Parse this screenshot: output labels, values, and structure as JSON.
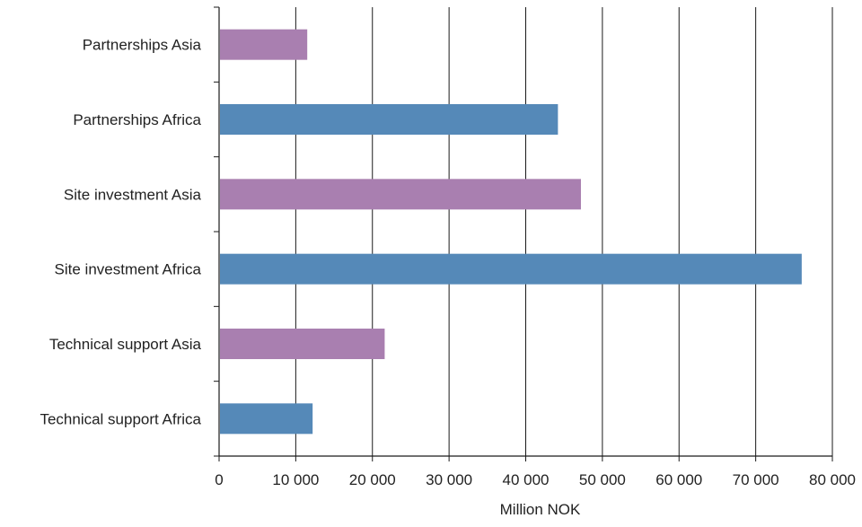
{
  "chart_data": {
    "type": "bar",
    "orientation": "horizontal",
    "categories": [
      "Partnerships Asia",
      "Partnerships Africa",
      "Site investment Asia",
      "Site investment Africa",
      "Technical support Asia",
      "Technical support Africa"
    ],
    "values": [
      11500,
      44200,
      47200,
      76000,
      21600,
      12200
    ],
    "bar_colors": [
      "#a97fb0",
      "#5589b8",
      "#a97fb0",
      "#5589b8",
      "#a97fb0",
      "#5589b8"
    ],
    "xlabel": "Million NOK",
    "ylabel": "",
    "xlim": [
      0,
      80000
    ],
    "x_ticks": [
      0,
      10000,
      20000,
      30000,
      40000,
      50000,
      60000,
      70000,
      80000
    ],
    "x_tick_labels": [
      "0",
      "10 000",
      "20 000",
      "30 000",
      "40 000",
      "50 000",
      "60 000",
      "70 000",
      "80 000"
    ],
    "grid": "vertical",
    "legend": "none"
  }
}
